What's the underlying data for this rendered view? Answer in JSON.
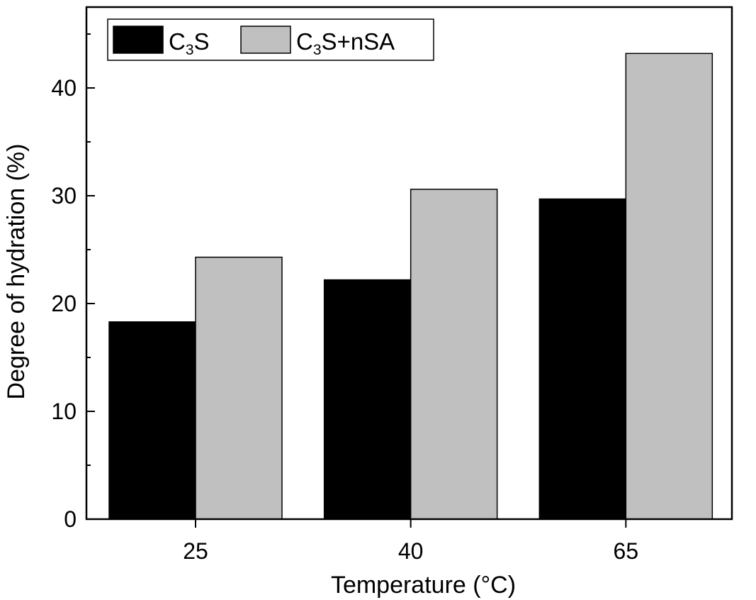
{
  "chart_data": {
    "type": "bar",
    "xlabel": "Temperature (°C)",
    "ylabel": "Degree of hydration (%)",
    "categories": [
      "25",
      "40",
      "65"
    ],
    "ylim": [
      0,
      47.5
    ],
    "yticks": [
      0,
      10,
      20,
      30,
      40
    ],
    "series": [
      {
        "name": "C3S",
        "legend_parts": [
          "C",
          "3",
          "S"
        ],
        "color": "#000000",
        "values": [
          18.3,
          22.2,
          29.7
        ]
      },
      {
        "name": "C3S+nSA",
        "legend_parts": [
          "C",
          "3",
          "S+nSA"
        ],
        "color": "#c0c0c0",
        "values": [
          24.3,
          30.6,
          43.2
        ]
      }
    ],
    "legend": "top-left",
    "grid": false
  }
}
